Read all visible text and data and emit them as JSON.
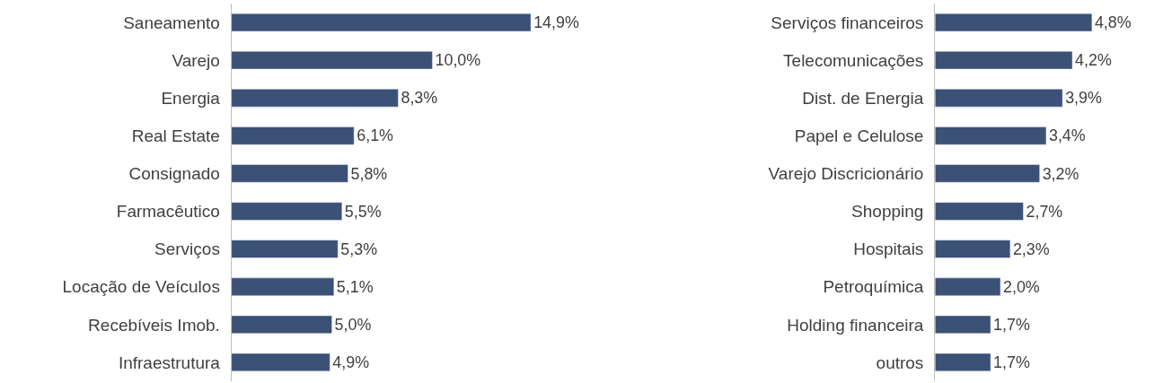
{
  "chart_data": [
    {
      "type": "bar",
      "orientation": "horizontal",
      "categories": [
        "Saneamento",
        "Varejo",
        "Energia",
        "Real Estate",
        "Consignado",
        "Farmacêutico",
        "Serviços",
        "Locação de Veículos",
        "Recebíveis Imob.",
        "Infraestrutura"
      ],
      "values": [
        14.9,
        10.0,
        8.3,
        6.1,
        5.8,
        5.5,
        5.3,
        5.1,
        5.0,
        4.9
      ],
      "color": "#3b5176",
      "value_labels": [
        "14,9%",
        "10,0%",
        "8,3%",
        "6,1%",
        "5,8%",
        "5,5%",
        "5,3%",
        "5,1%",
        "5,0%",
        "4,9%"
      ],
      "tick_labels": "y"
    },
    {
      "type": "bar",
      "orientation": "horizontal",
      "categories": [
        "Serviços financeiros",
        "Telecomunicações",
        "Dist. de Energia",
        "Papel e Celulose",
        "Varejo Discricionário",
        "Shopping",
        "Hospitais",
        "Petroquímica",
        "Holding financeira",
        "outros"
      ],
      "values": [
        4.8,
        4.2,
        3.9,
        3.4,
        3.2,
        2.7,
        2.3,
        2.0,
        1.7,
        1.7
      ],
      "color": "#3b5176",
      "value_labels": [
        "4,8%",
        "4,2%",
        "3,9%",
        "3,4%",
        "3,2%",
        "2,7%",
        "2,3%",
        "2,0%",
        "1,7%",
        "1,7%"
      ],
      "tick_labels": "y"
    }
  ]
}
